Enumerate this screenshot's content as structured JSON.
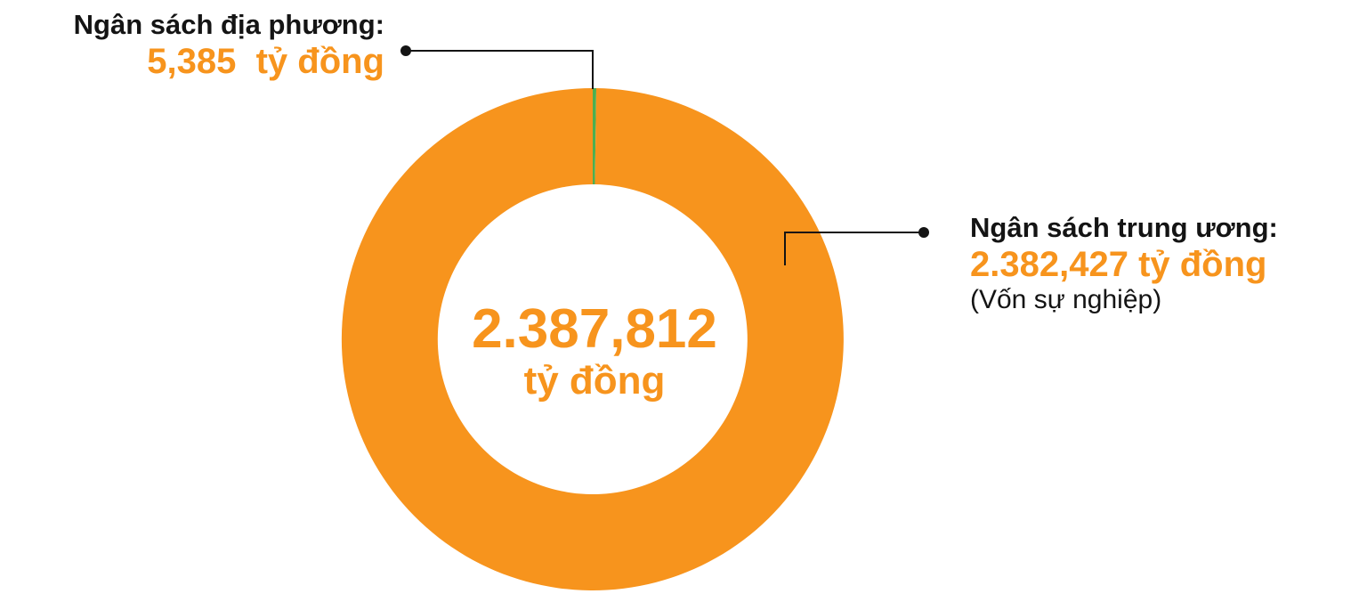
{
  "chart_data": {
    "type": "pie",
    "donut": true,
    "unit": "tỷ đồng",
    "total": {
      "value": "2.387,812",
      "unit": "tỷ đồng"
    },
    "slices": [
      {
        "label": "Ngân sách địa phương:",
        "value": 5.385,
        "display_value": "5,385  tỷ đồng",
        "color": "#4CAF50"
      },
      {
        "label": "Ngân sách trung ương:",
        "value": 2382.427,
        "display_value": "2.382,427 tỷ đồng",
        "note": "(Vốn sự nghiệp)",
        "color": "#F7941D"
      }
    ]
  }
}
